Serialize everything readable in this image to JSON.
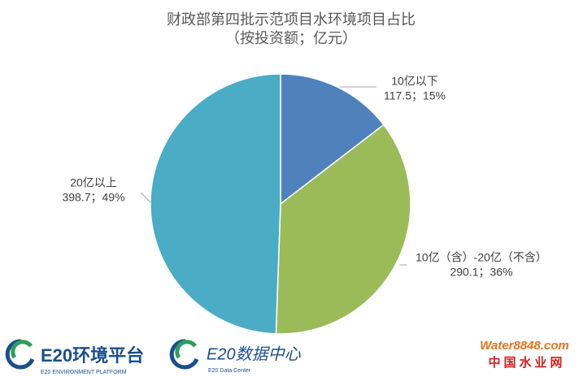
{
  "chart_data": {
    "type": "pie",
    "title": "财政部第四批示范项目水环境项目占比",
    "subtitle": "（按投资额；亿元）",
    "categories": [
      "10亿以下",
      "10亿（含）-20亿（不含）",
      "20亿以上"
    ],
    "values": [
      117.5,
      290.1,
      398.7
    ],
    "value_labels": [
      "117.5；15%",
      "290.1；36%",
      "398.7；49%"
    ],
    "colors": [
      "#4f81bd",
      "#9bbb59",
      "#4bacc6"
    ]
  },
  "logos": {
    "e20_platform": "E20环境平台",
    "e20_platform_en": "E20 ENVIRONMENT PLATFORM",
    "e20_data": "E20数据中心",
    "e20_data_en": "E20 Data Center",
    "water_site": "Water8848.com",
    "water_name": "中国水业网"
  }
}
